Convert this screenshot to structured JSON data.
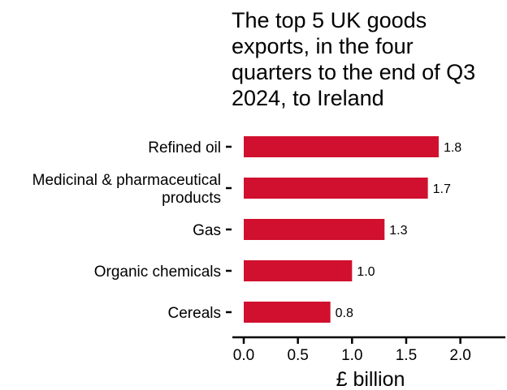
{
  "chart_data": {
    "type": "bar",
    "orientation": "horizontal",
    "title": "The top 5 UK goods exports, in the four quarters to the end of Q3 2024, to Ireland",
    "title_lines": [
      "The top 5 UK goods",
      "exports, in the four",
      "quarters to the end of Q3",
      "2024, to Ireland"
    ],
    "categories": [
      "Refined oil",
      "Medicinal & pharmaceutical products",
      "Gas",
      "Organic chemicals",
      "Cereals"
    ],
    "category_lines": [
      [
        "Refined oil"
      ],
      [
        "Medicinal & pharmaceutical",
        "products"
      ],
      [
        "Gas"
      ],
      [
        "Organic chemicals"
      ],
      [
        "Cereals"
      ]
    ],
    "values": [
      1.8,
      1.7,
      1.3,
      1.0,
      0.8
    ],
    "value_labels": [
      "1.8",
      "1.7",
      "1.3",
      "1.0",
      "0.8"
    ],
    "xlabel": "£ billion",
    "ylabel": "",
    "xlim": [
      0,
      2.4
    ],
    "xticks": [
      0.0,
      0.5,
      1.0,
      1.5,
      2.0
    ],
    "xtick_labels": [
      "0.0",
      "0.5",
      "1.0",
      "1.5",
      "2.0"
    ],
    "bar_color": "#d0102e",
    "grid": false,
    "legend": "none"
  }
}
